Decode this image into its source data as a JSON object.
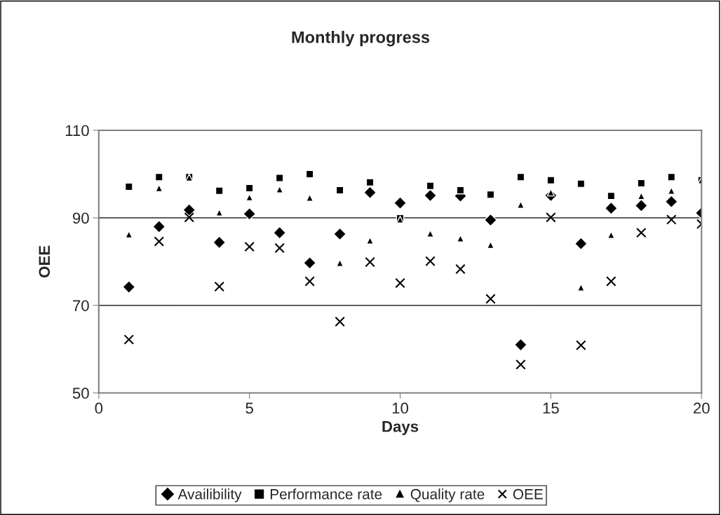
{
  "chart_data": {
    "type": "scatter",
    "title": "Monthly progress",
    "xlabel": "Days",
    "ylabel": "OEE",
    "x": [
      1,
      2,
      3,
      4,
      5,
      6,
      7,
      8,
      9,
      10,
      11,
      12,
      13,
      14,
      15,
      16,
      17,
      18,
      19,
      20
    ],
    "series": [
      {
        "name": "Availibility",
        "color": "#000000",
        "marker": "diamond",
        "values": [
          74.2,
          88.0,
          91.8,
          84.4,
          90.9,
          86.6,
          79.7,
          86.3,
          95.8,
          93.4,
          95.1,
          95.0,
          89.5,
          61.0,
          95.1,
          84.1,
          92.2,
          92.8,
          93.7,
          91.1
        ]
      },
      {
        "name": "Performance rate",
        "color": "#000000",
        "marker": "square",
        "values": [
          97.1,
          99.3,
          99.3,
          96.2,
          96.8,
          99.1,
          100.0,
          96.3,
          98.1,
          89.9,
          97.3,
          96.3,
          95.3,
          99.3,
          98.6,
          97.8,
          95.0,
          97.9,
          99.3,
          98.6
        ]
      },
      {
        "name": "Quality rate",
        "color": "#000000",
        "marker": "triangle",
        "values": [
          86.2,
          96.8,
          99.2,
          91.2,
          94.7,
          96.5,
          94.6,
          79.7,
          84.8,
          89.6,
          86.4,
          85.3,
          83.8,
          93.0,
          95.8,
          74.1,
          86.1,
          95.0,
          96.2,
          98.6
        ]
      },
      {
        "name": "OEE",
        "color": "#000000",
        "marker": "cross",
        "values": [
          62.2,
          84.6,
          90.1,
          74.3,
          83.4,
          83.1,
          75.5,
          66.3,
          79.9,
          75.1,
          80.1,
          78.3,
          71.5,
          56.5,
          90.1,
          60.9,
          75.5,
          86.6,
          89.6,
          88.6
        ]
      }
    ],
    "xlim": [
      0,
      20
    ],
    "xticks": [
      0,
      5,
      10,
      15,
      20
    ],
    "ylim": [
      50,
      110
    ],
    "yticks": [
      50,
      70,
      90,
      110
    ],
    "grid": "y",
    "legend": "bottom"
  }
}
